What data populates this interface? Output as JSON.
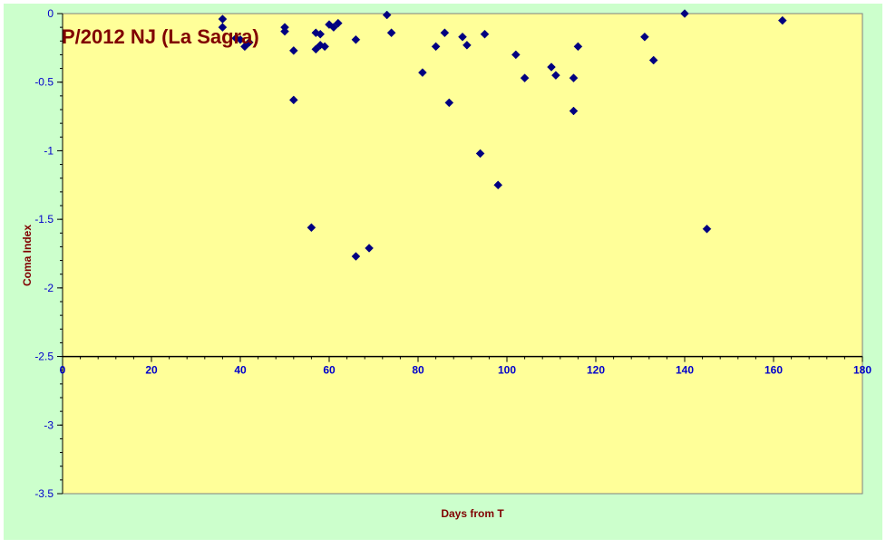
{
  "chart_data": {
    "type": "scatter",
    "title": "P/2012 NJ (La Sagra)",
    "xlabel": "Days from T",
    "ylabel": "Coma Index",
    "xlim": [
      0,
      180
    ],
    "ylim": [
      -3.5,
      0
    ],
    "x_ticks": [
      0,
      20,
      40,
      60,
      80,
      100,
      120,
      140,
      160,
      180
    ],
    "y_ticks": [
      0,
      -0.5,
      -1,
      -1.5,
      -2,
      -2.5,
      -3,
      -3.5
    ],
    "x_tick_labels": [
      "0",
      "20",
      "40",
      "60",
      "80",
      "100",
      "120",
      "140",
      "160",
      "180"
    ],
    "y_tick_labels": [
      "0",
      "-0.5",
      "-1",
      "-1.5",
      "-2",
      "-2.5",
      "-3",
      "-3.5"
    ],
    "x_axis_crosses_y": -2.5,
    "grid": false,
    "legend": "none",
    "colors": {
      "outer_background": "#CCFFCC",
      "plot_background": "#FFFF99",
      "marker": "#000080",
      "axis_text": "#0000CC",
      "label_text": "#800000"
    },
    "series": [
      {
        "marker": "diamond",
        "points": [
          [
            36,
            -0.04
          ],
          [
            36,
            -0.1
          ],
          [
            39,
            -0.18
          ],
          [
            40,
            -0.19
          ],
          [
            41,
            -0.24
          ],
          [
            42,
            -0.21
          ],
          [
            50,
            -0.1
          ],
          [
            50,
            -0.13
          ],
          [
            52,
            -0.27
          ],
          [
            52,
            -0.63
          ],
          [
            56,
            -1.56
          ],
          [
            57,
            -0.14
          ],
          [
            57,
            -0.26
          ],
          [
            58,
            -0.15
          ],
          [
            58,
            -0.23
          ],
          [
            59,
            -0.24
          ],
          [
            60,
            -0.08
          ],
          [
            61,
            -0.1
          ],
          [
            62,
            -0.07
          ],
          [
            66,
            -0.19
          ],
          [
            66,
            -1.77
          ],
          [
            69,
            -1.71
          ],
          [
            73,
            -0.01
          ],
          [
            74,
            -0.14
          ],
          [
            81,
            -0.43
          ],
          [
            84,
            -0.24
          ],
          [
            86,
            -0.14
          ],
          [
            87,
            -0.65
          ],
          [
            90,
            -0.17
          ],
          [
            91,
            -0.23
          ],
          [
            94,
            -1.02
          ],
          [
            95,
            -0.15
          ],
          [
            98,
            -1.25
          ],
          [
            102,
            -0.3
          ],
          [
            104,
            -0.47
          ],
          [
            110,
            -0.39
          ],
          [
            111,
            -0.45
          ],
          [
            115,
            -0.47
          ],
          [
            115,
            -0.71
          ],
          [
            116,
            -0.24
          ],
          [
            131,
            -0.17
          ],
          [
            133,
            -0.34
          ],
          [
            140,
            0.0
          ],
          [
            145,
            -1.57
          ],
          [
            162,
            -0.05
          ]
        ]
      }
    ]
  }
}
